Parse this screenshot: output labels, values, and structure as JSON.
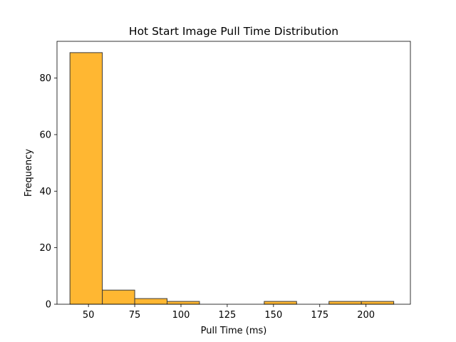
{
  "chart_data": {
    "type": "histogram",
    "title": "Hot Start Image Pull Time Distribution",
    "xlabel": "Pull Time (ms)",
    "ylabel": "Frequency",
    "xlim": [
      33,
      224
    ],
    "ylim": [
      0,
      93
    ],
    "xticks": [
      50,
      75,
      100,
      125,
      150,
      175,
      200
    ],
    "yticks": [
      0,
      20,
      40,
      60,
      80
    ],
    "bins": [
      {
        "start": 40.0,
        "end": 57.5,
        "count": 89
      },
      {
        "start": 57.5,
        "end": 75.0,
        "count": 5
      },
      {
        "start": 75.0,
        "end": 92.5,
        "count": 2
      },
      {
        "start": 92.5,
        "end": 110.0,
        "count": 1
      },
      {
        "start": 110.0,
        "end": 127.5,
        "count": 0
      },
      {
        "start": 127.5,
        "end": 145.0,
        "count": 0
      },
      {
        "start": 145.0,
        "end": 162.5,
        "count": 1
      },
      {
        "start": 162.5,
        "end": 180.0,
        "count": 0
      },
      {
        "start": 180.0,
        "end": 197.5,
        "count": 1
      },
      {
        "start": 197.5,
        "end": 215.0,
        "count": 1
      }
    ],
    "bar_color": "#FFB732",
    "edge_color": "#3a3a3a",
    "grid": false
  }
}
